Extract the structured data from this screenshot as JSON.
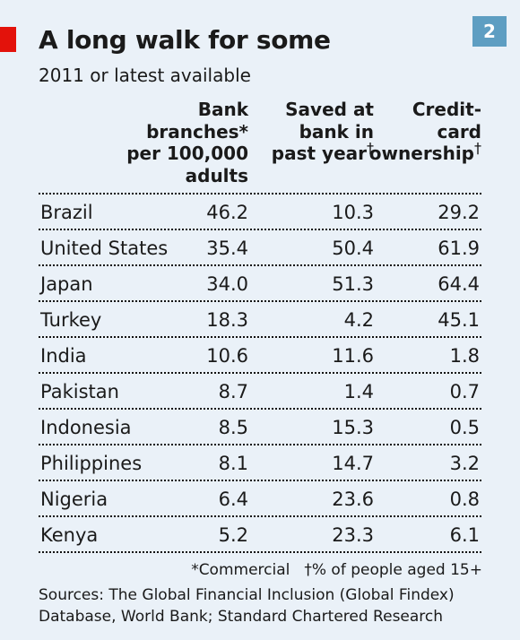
{
  "header": {
    "title": "A long walk for some",
    "badge": "2",
    "subtitle": "2011 or latest available"
  },
  "columns": [
    {
      "lines": [
        "Bank",
        "branches*",
        "per 100,000",
        "adults"
      ]
    },
    {
      "lines": [
        "Saved at",
        "bank in",
        "past year†"
      ]
    },
    {
      "lines": [
        "Credit-",
        "card",
        "ownership†"
      ]
    }
  ],
  "chart_data": {
    "type": "table",
    "title": "A long walk for some",
    "subtitle": "2011 or latest available",
    "columns": [
      "Bank branches* per 100,000 adults",
      "Saved at bank in past year†",
      "Credit-card ownership†"
    ],
    "rows": [
      {
        "country": "Brazil",
        "values": [
          "46.2",
          "10.3",
          "29.2"
        ]
      },
      {
        "country": "United States",
        "values": [
          "35.4",
          "50.4",
          "61.9"
        ]
      },
      {
        "country": "Japan",
        "values": [
          "34.0",
          "51.3",
          "64.4"
        ]
      },
      {
        "country": "Turkey",
        "values": [
          "18.3",
          "4.2",
          "45.1"
        ]
      },
      {
        "country": "India",
        "values": [
          "10.6",
          "11.6",
          "1.8"
        ]
      },
      {
        "country": "Pakistan",
        "values": [
          "8.7",
          "1.4",
          "0.7"
        ]
      },
      {
        "country": "Indonesia",
        "values": [
          "8.5",
          "15.3",
          "0.5"
        ]
      },
      {
        "country": "Philippines",
        "values": [
          "8.1",
          "14.7",
          "3.2"
        ]
      },
      {
        "country": "Nigeria",
        "values": [
          "6.4",
          "23.6",
          "0.8"
        ]
      },
      {
        "country": "Kenya",
        "values": [
          "5.2",
          "23.3",
          "6.1"
        ]
      }
    ]
  },
  "footer": {
    "note_commercial": "*Commercial",
    "note_people": "†% of people aged 15+",
    "sources_line1": "Sources: The Global Financial Inclusion (Global Findex)",
    "sources_line2": "Database, World Bank; Standard Chartered Research"
  },
  "colors": {
    "accent_red": "#e3120b",
    "badge_blue": "#5e9ec2",
    "background": "#eaf1f8"
  }
}
